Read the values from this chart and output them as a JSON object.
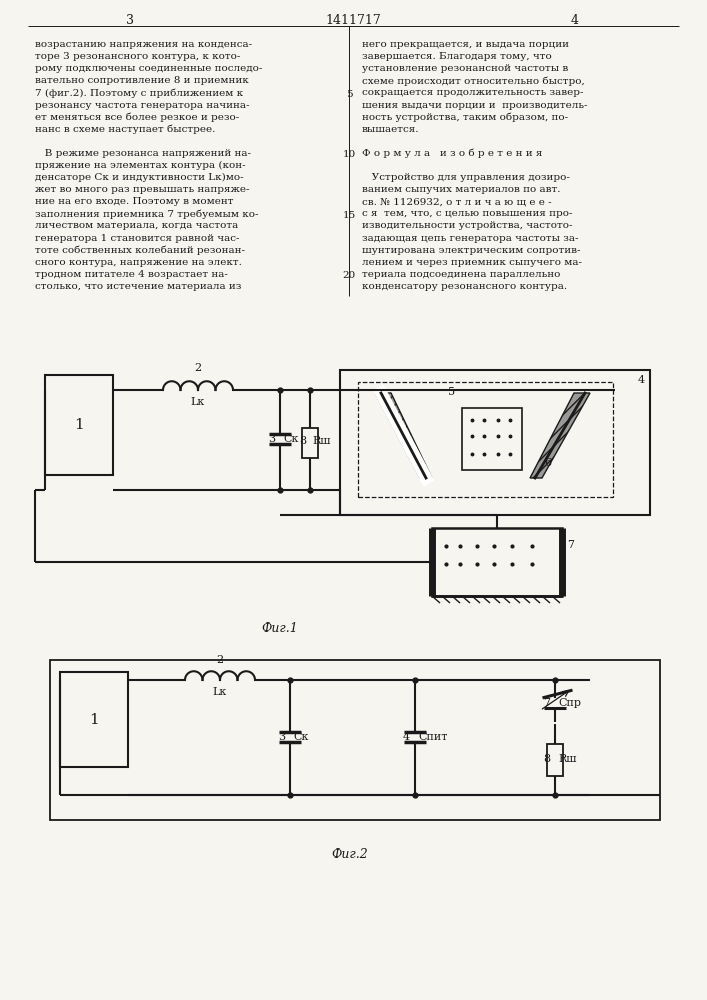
{
  "bg_color": "#f7f5f0",
  "line_color": "#1a1a1a",
  "page_title": "1411717",
  "page_left": "3",
  "page_right": "4",
  "col1_lines": [
    "возрастанию напряжения на конденса-",
    "торе 3 резонансного контура, к кото-",
    "рому подключены соединенные последо-",
    "вательно сопротивление 8 и приемник",
    "7 (фиг.2). Поэтому с приближением к",
    "резонансу частота генератора начина-",
    "ет меняться все более резкое и резо-",
    "нанс в схеме наступает быстрее.",
    "",
    "   В режиме резонанса напряжений на-",
    "пряжение на элементах контура (кон-",
    "денсаторе Ск и индуктивности Lк)мо-",
    "жет во много раз превышать напряже-",
    "ние на его входе. Поэтому в момент",
    "заполнения приемника 7 требуемым ко-",
    "личеством материала, когда частота",
    "генератора 1 становится равной час-",
    "тоте собственных колебаний резонан-",
    "сного контура, напряжение на элект.",
    "тродном питателе 4 возрастает на-",
    "столько, что истечение материала из"
  ],
  "col2_lines": [
    "него прекращается, и выдача порции",
    "завершается. Благодаря тому, что",
    "установление резонансной частоты в",
    "схеме происходит относительно быстро,",
    "сокращается продолжительность завер-",
    "шения выдачи порции и  производитель-",
    "ность устройства, таким образом, по-",
    "вышается.",
    "",
    "Ф о р м у л а   и з о б р е т е н и я",
    "",
    "   Устройство для управления дозиро-",
    "ванием сыпучих материалов по авт.",
    "св. № 1126932, о т л и ч а ю щ е е -",
    "с я  тем, что, с целью повышения про-",
    "изводительности устройства, частото-",
    "задающая цепь генератора частоты за-",
    "шунтирована электрическим сопротив-",
    "лением и через приемник сыпучего ма-",
    "териала подсоединена параллельно",
    "конденсатору резонансного контура."
  ],
  "line_nums": [
    [
      "5",
      4
    ],
    [
      "10",
      9
    ],
    [
      "15",
      14
    ],
    [
      "20",
      19
    ]
  ]
}
